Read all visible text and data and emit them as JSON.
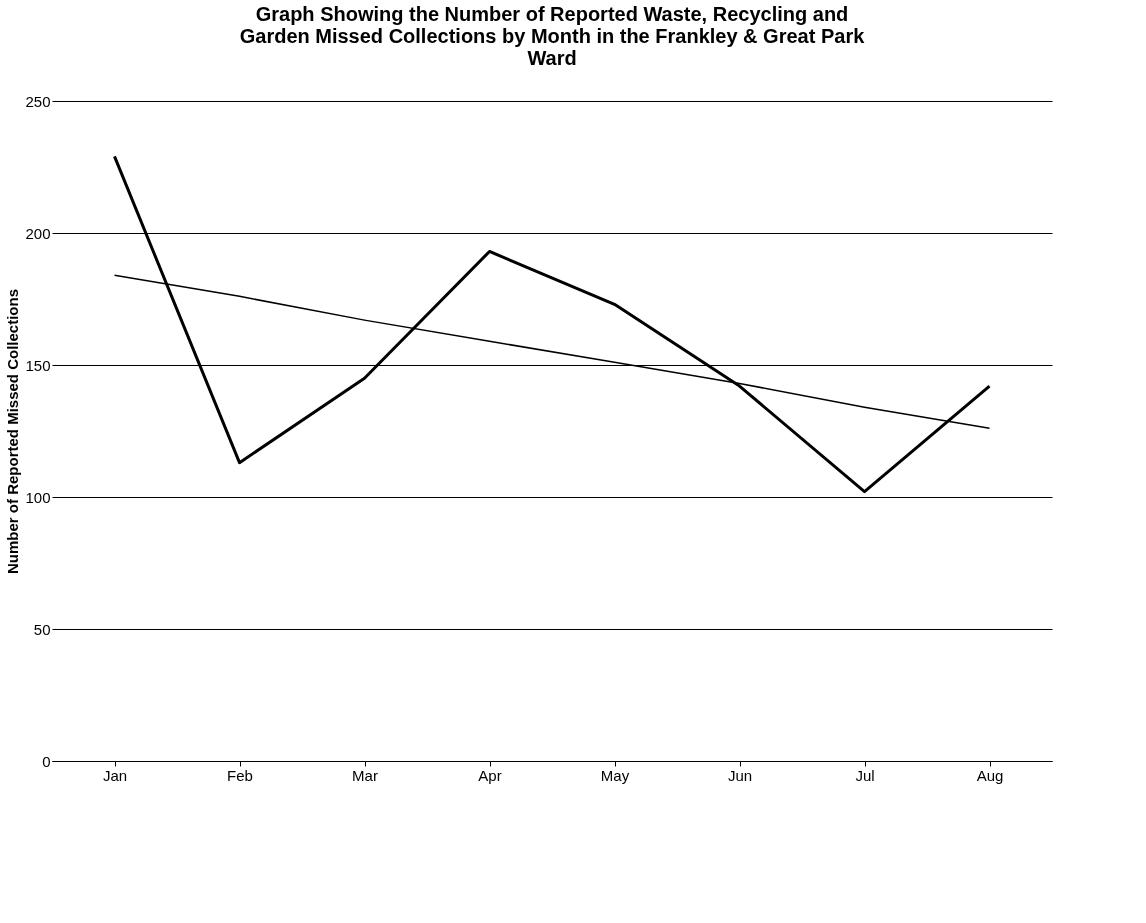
{
  "chart_data": {
    "type": "line",
    "title": "Graph Showing the Number of Reported Waste, Recycling and Garden Missed Collections by Month in the Frankley & Great Park Ward",
    "ylabel": "Number of Reported Missed Collections",
    "categories": [
      "Jan",
      "Feb",
      "Mar",
      "Apr",
      "May",
      "Jun",
      "Jul",
      "Aug"
    ],
    "series": [
      {
        "color": "#000000",
        "values": [
          229,
          113,
          145,
          193,
          173,
          142,
          102,
          142
        ]
      },
      {
        "color": "#000000",
        "values": [
          184,
          176,
          167,
          159,
          151,
          143,
          134,
          126
        ]
      }
    ],
    "ylim": [
      0,
      250
    ],
    "yticks": [
      0,
      50,
      100,
      150,
      200,
      250
    ],
    "grid": "y",
    "legend": false,
    "marker": "none",
    "line_style": "solid"
  }
}
